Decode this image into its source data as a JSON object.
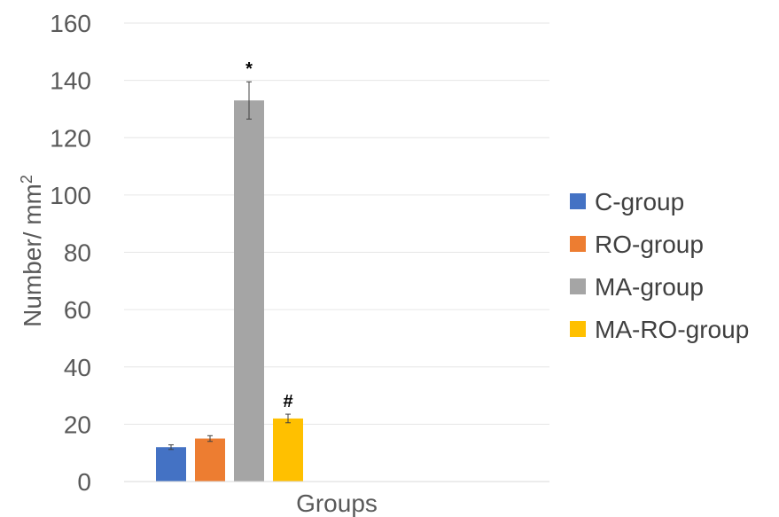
{
  "chart_data": {
    "type": "bar",
    "xlabel": "Groups",
    "ylabel": "Number/ mm",
    "ylabel_superscript": "2",
    "ylim": [
      0,
      160
    ],
    "yticks": [
      0,
      20,
      40,
      60,
      80,
      100,
      120,
      140,
      160
    ],
    "grid": true,
    "legend_position": "right",
    "series": [
      {
        "name": "C-group",
        "value": 12,
        "error": 0.8,
        "color": "#4472C4",
        "annotation": ""
      },
      {
        "name": "RO-group",
        "value": 15,
        "error": 1.0,
        "color": "#ED7D31",
        "annotation": ""
      },
      {
        "name": "MA-group",
        "value": 133,
        "error": 6.5,
        "color": "#A5A5A5",
        "annotation": "*"
      },
      {
        "name": "MA-RO-group",
        "value": 22,
        "error": 1.5,
        "color": "#FFC000",
        "annotation": "#"
      }
    ]
  }
}
